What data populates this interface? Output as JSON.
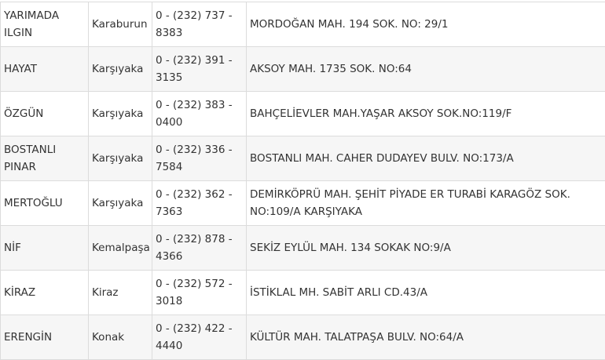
{
  "rows": [
    {
      "name": "YARIMADA ILGIN",
      "district": "Karaburun",
      "phone": "0 - (232) 737 - 8383",
      "address": "MORDOĞAN MAH. 194 SOK. NO: 29/1"
    },
    {
      "name": "HAYAT",
      "district": "Karşıyaka",
      "phone": "0 - (232) 391 - 3135",
      "address": "AKSOY MAH. 1735 SOK. NO:64"
    },
    {
      "name": "ÖZGÜN",
      "district": "Karşıyaka",
      "phone": "0 - (232) 383 - 0400",
      "address": "BAHÇELİEVLER MAH.YAŞAR AKSOY SOK.NO:119/F"
    },
    {
      "name": "BOSTANLI PINAR",
      "district": "Karşıyaka",
      "phone": "0 - (232) 336 - 7584",
      "address": "BOSTANLI MAH. CAHER DUDAYEV BULV. NO:173/A"
    },
    {
      "name": "MERTOĞLU",
      "district": "Karşıyaka",
      "phone": "0 - (232) 362 - 7363",
      "address": "DEMİRKÖPRÜ MAH. ŞEHİT PİYADE ER TURABİ KARAGÖZ SOK. NO:109/A KARŞIYAKA"
    },
    {
      "name": "NİF",
      "district": "Kemalpaşa",
      "phone": "0 - (232) 878 - 4366",
      "address": "SEKİZ EYLÜL MAH. 134 SOKAK NO:9/A"
    },
    {
      "name": "KİRAZ",
      "district": "Kiraz",
      "phone": "0 - (232) 572 - 3018",
      "address": "İSTİKLAL MH. SABİT ARLI CD.43/A"
    },
    {
      "name": "ERENGİN",
      "district": "Konak",
      "phone": "0 - (232) 422 - 4440",
      "address": "KÜLTÜR MAH. TALATPAŞA BULV. NO:64/A"
    }
  ]
}
